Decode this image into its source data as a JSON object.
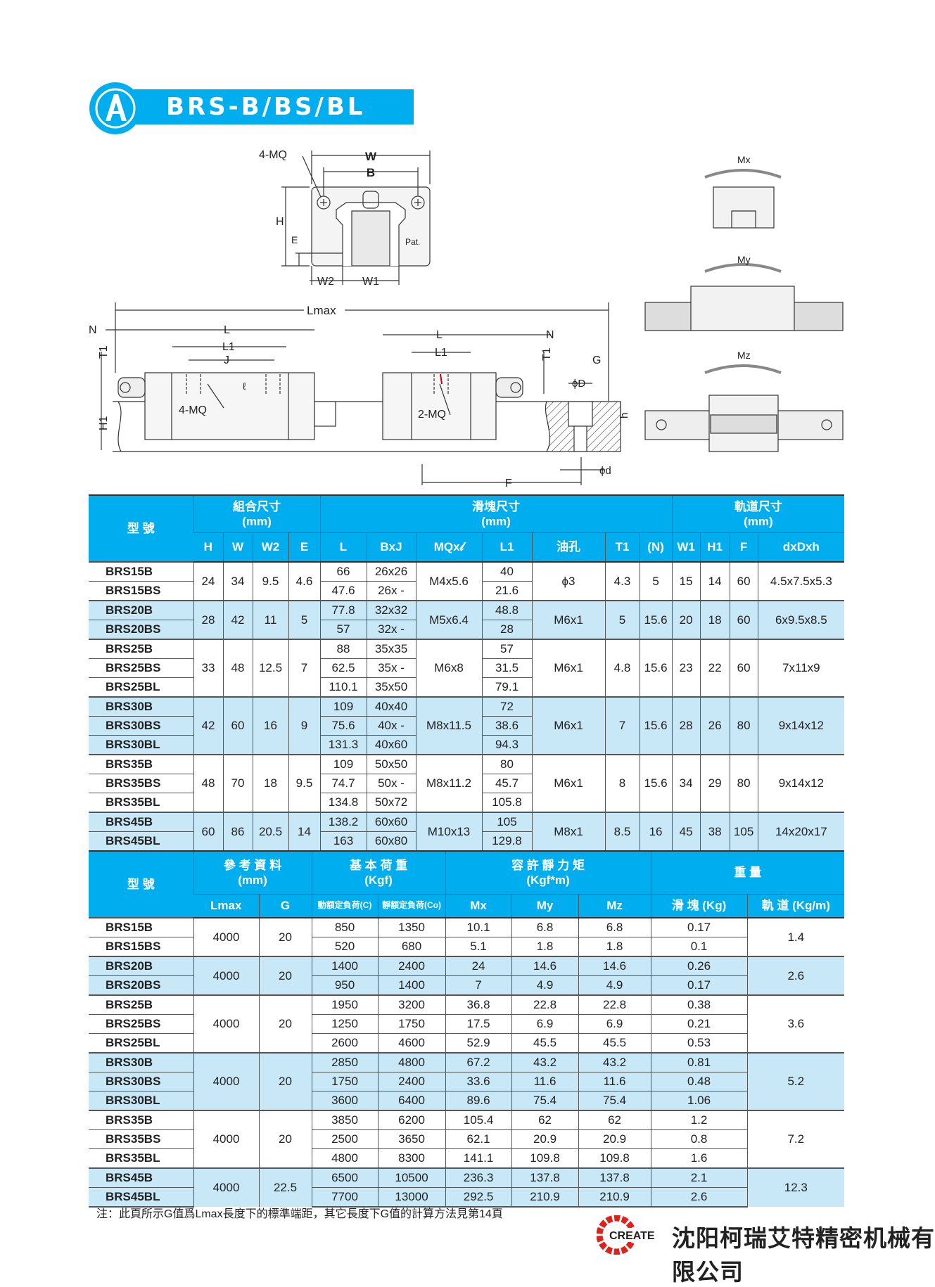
{
  "header": {
    "title": "BRS-B/BS/BL",
    "accent": "#00aeef"
  },
  "diagram": {
    "end_view": {
      "w": "W",
      "b": "B",
      "mq": "4-MQ",
      "h": "H",
      "e": "E",
      "w2": "W2",
      "w1": "W1",
      "pat": "Pat."
    },
    "side_view": {
      "lmax": "Lmax",
      "n_left": "N",
      "l_left": "L",
      "l1_left": "L1",
      "j": "J",
      "t1_left": "T1",
      "h1": "H1",
      "mq4": "4-MQ",
      "l_right": "L",
      "n_right": "N",
      "l1_right": "L1",
      "t1_right": "T1",
      "mq2": "2-MQ",
      "g": "G",
      "phiD": "ϕD",
      "h": "h",
      "phid": "ϕd",
      "f": "F",
      "l_mark": "ℓ"
    },
    "moments": {
      "mx": "Mx",
      "my": "My",
      "mz": "Mz"
    }
  },
  "table1": {
    "group_headers": [
      {
        "label": "型 號",
        "sub": ""
      },
      {
        "label": "組合尺寸",
        "sub": "(mm)"
      },
      {
        "label": "滑塊尺寸",
        "sub": "(mm)"
      },
      {
        "label": "軌道尺寸",
        "sub": "(mm)"
      }
    ],
    "columns": [
      "H",
      "W",
      "W2",
      "E",
      "L",
      "BxJ",
      "MQx𝓁",
      "L1",
      "油孔",
      "T1",
      "(N)",
      "W1",
      "H1",
      "F",
      "dxDxh"
    ],
    "groups": [
      {
        "H": "24",
        "W": "34",
        "W2": "9.5",
        "E": "4.6",
        "MQ": "M4x5.6",
        "oil": "ϕ3",
        "T1": "4.3",
        "N": "5",
        "W1": "15",
        "H1": "14",
        "F": "60",
        "dDh": "4.5x7.5x5.3",
        "rows": [
          {
            "model": "BRS15B",
            "L": "66",
            "BxJ": "26x26",
            "L1": "40"
          },
          {
            "model": "BRS15BS",
            "L": "47.6",
            "BxJ": "26x  -",
            "L1": "21.6"
          }
        ]
      },
      {
        "H": "28",
        "W": "42",
        "W2": "11",
        "E": "5",
        "MQ": "M5x6.4",
        "oil": "M6x1",
        "T1": "5",
        "N": "15.6",
        "W1": "20",
        "H1": "18",
        "F": "60",
        "dDh": "6x9.5x8.5",
        "rows": [
          {
            "model": "BRS20B",
            "L": "77.8",
            "BxJ": "32x32",
            "L1": "48.8"
          },
          {
            "model": "BRS20BS",
            "L": "57",
            "BxJ": "32x  -",
            "L1": "28"
          }
        ]
      },
      {
        "H": "33",
        "W": "48",
        "W2": "12.5",
        "E": "7",
        "MQ": "M6x8",
        "oil": "M6x1",
        "T1": "4.8",
        "N": "15.6",
        "W1": "23",
        "H1": "22",
        "F": "60",
        "dDh": "7x11x9",
        "rows": [
          {
            "model": "BRS25B",
            "L": "88",
            "BxJ": "35x35",
            "L1": "57"
          },
          {
            "model": "BRS25BS",
            "L": "62.5",
            "BxJ": "35x  -",
            "L1": "31.5"
          },
          {
            "model": "BRS25BL",
            "L": "110.1",
            "BxJ": "35x50",
            "L1": "79.1"
          }
        ]
      },
      {
        "H": "42",
        "W": "60",
        "W2": "16",
        "E": "9",
        "MQ": "M8x11.5",
        "oil": "M6x1",
        "T1": "7",
        "N": "15.6",
        "W1": "28",
        "H1": "26",
        "F": "80",
        "dDh": "9x14x12",
        "rows": [
          {
            "model": "BRS30B",
            "L": "109",
            "BxJ": "40x40",
            "L1": "72"
          },
          {
            "model": "BRS30BS",
            "L": "75.6",
            "BxJ": "40x  -",
            "L1": "38.6"
          },
          {
            "model": "BRS30BL",
            "L": "131.3",
            "BxJ": "40x60",
            "L1": "94.3"
          }
        ]
      },
      {
        "H": "48",
        "W": "70",
        "W2": "18",
        "E": "9.5",
        "MQ": "M8x11.2",
        "oil": "M6x1",
        "T1": "8",
        "N": "15.6",
        "W1": "34",
        "H1": "29",
        "F": "80",
        "dDh": "9x14x12",
        "rows": [
          {
            "model": "BRS35B",
            "L": "109",
            "BxJ": "50x50",
            "L1": "80"
          },
          {
            "model": "BRS35BS",
            "L": "74.7",
            "BxJ": "50x  -",
            "L1": "45.7"
          },
          {
            "model": "BRS35BL",
            "L": "134.8",
            "BxJ": "50x72",
            "L1": "105.8"
          }
        ]
      },
      {
        "H": "60",
        "W": "86",
        "W2": "20.5",
        "E": "14",
        "MQ": "M10x13",
        "oil": "M8x1",
        "T1": "8.5",
        "N": "16",
        "W1": "45",
        "H1": "38",
        "F": "105",
        "dDh": "14x20x17",
        "rows": [
          {
            "model": "BRS45B",
            "L": "138.2",
            "BxJ": "60x60",
            "L1": "105"
          },
          {
            "model": "BRS45BL",
            "L": "163",
            "BxJ": "60x80",
            "L1": "129.8"
          }
        ]
      }
    ]
  },
  "table2": {
    "group_headers": [
      {
        "label": "型 號",
        "sub": ""
      },
      {
        "label": "參 考 資 料",
        "sub": "(mm)"
      },
      {
        "label": "基 本 荷 重",
        "sub": "(Kgf)"
      },
      {
        "label": "容 許 靜 力 矩",
        "sub": "(Kgf*m)"
      },
      {
        "label": "重 量",
        "sub": ""
      }
    ],
    "columns": [
      "Lmax",
      "G",
      "動額定負荷(C)",
      "靜額定負荷(Co)",
      "Mx",
      "My",
      "Mz",
      "滑 塊 (Kg)",
      "軌 道 (Kg/m)"
    ],
    "groups": [
      {
        "Lmax": "4000",
        "G": "20",
        "rail": "1.4",
        "rows": [
          {
            "model": "BRS15B",
            "C": "850",
            "Co": "1350",
            "Mx": "10.1",
            "My": "6.8",
            "Mz": "6.8",
            "block": "0.17"
          },
          {
            "model": "BRS15BS",
            "C": "520",
            "Co": "680",
            "Mx": "5.1",
            "My": "1.8",
            "Mz": "1.8",
            "block": "0.1"
          }
        ]
      },
      {
        "Lmax": "4000",
        "G": "20",
        "rail": "2.6",
        "rows": [
          {
            "model": "BRS20B",
            "C": "1400",
            "Co": "2400",
            "Mx": "24",
            "My": "14.6",
            "Mz": "14.6",
            "block": "0.26"
          },
          {
            "model": "BRS20BS",
            "C": "950",
            "Co": "1400",
            "Mx": "7",
            "My": "4.9",
            "Mz": "4.9",
            "block": "0.17"
          }
        ]
      },
      {
        "Lmax": "4000",
        "G": "20",
        "rail": "3.6",
        "rows": [
          {
            "model": "BRS25B",
            "C": "1950",
            "Co": "3200",
            "Mx": "36.8",
            "My": "22.8",
            "Mz": "22.8",
            "block": "0.38"
          },
          {
            "model": "BRS25BS",
            "C": "1250",
            "Co": "1750",
            "Mx": "17.5",
            "My": "6.9",
            "Mz": "6.9",
            "block": "0.21"
          },
          {
            "model": "BRS25BL",
            "C": "2600",
            "Co": "4600",
            "Mx": "52.9",
            "My": "45.5",
            "Mz": "45.5",
            "block": "0.53"
          }
        ]
      },
      {
        "Lmax": "4000",
        "G": "20",
        "rail": "5.2",
        "rows": [
          {
            "model": "BRS30B",
            "C": "2850",
            "Co": "4800",
            "Mx": "67.2",
            "My": "43.2",
            "Mz": "43.2",
            "block": "0.81"
          },
          {
            "model": "BRS30BS",
            "C": "1750",
            "Co": "2400",
            "Mx": "33.6",
            "My": "11.6",
            "Mz": "11.6",
            "block": "0.48"
          },
          {
            "model": "BRS30BL",
            "C": "3600",
            "Co": "6400",
            "Mx": "89.6",
            "My": "75.4",
            "Mz": "75.4",
            "block": "1.06"
          }
        ]
      },
      {
        "Lmax": "4000",
        "G": "20",
        "rail": "7.2",
        "rows": [
          {
            "model": "BRS35B",
            "C": "3850",
            "Co": "6200",
            "Mx": "105.4",
            "My": "62",
            "Mz": "62",
            "block": "1.2"
          },
          {
            "model": "BRS35BS",
            "C": "2500",
            "Co": "3650",
            "Mx": "62.1",
            "My": "20.9",
            "Mz": "20.9",
            "block": "0.8"
          },
          {
            "model": "BRS35BL",
            "C": "4800",
            "Co": "8300",
            "Mx": "141.1",
            "My": "109.8",
            "Mz": "109.8",
            "block": "1.6"
          }
        ]
      },
      {
        "Lmax": "4000",
        "G": "22.5",
        "rail": "12.3",
        "rows": [
          {
            "model": "BRS45B",
            "C": "6500",
            "Co": "10500",
            "Mx": "236.3",
            "My": "137.8",
            "Mz": "137.8",
            "block": "2.1"
          },
          {
            "model": "BRS45BL",
            "C": "7700",
            "Co": "13000",
            "Mx": "292.5",
            "My": "210.9",
            "Mz": "210.9",
            "block": "2.6"
          }
        ]
      }
    ]
  },
  "footer": {
    "note": "注：此頁所示G值爲Lmax長度下的標準端距，其它長度下G值的計算方法見第14頁",
    "logo_text": "CREATE",
    "company": "沈阳柯瑞艾特精密机械有限公司",
    "logo_color": "#e0211b"
  },
  "colors": {
    "header_blue": "#00aeef",
    "row_shade": "#c9e8f7"
  }
}
